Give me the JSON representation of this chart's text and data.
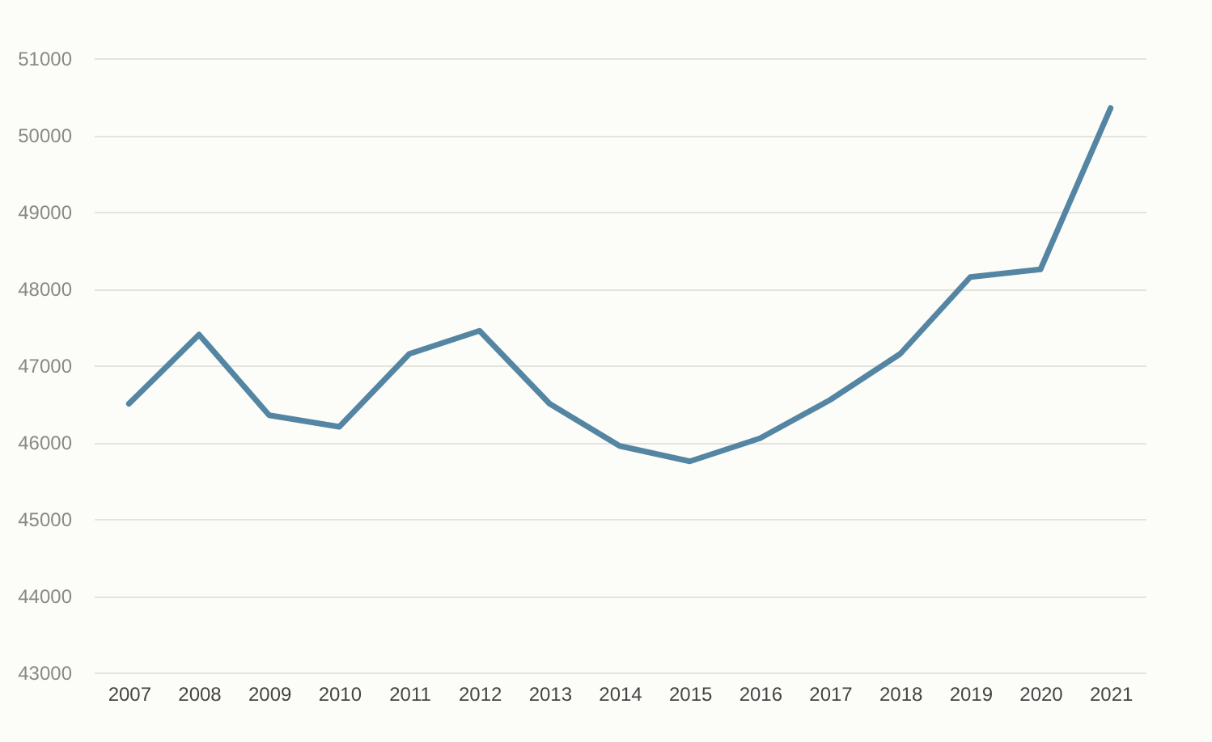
{
  "chart_data": {
    "type": "line",
    "categories": [
      "2007",
      "2008",
      "2009",
      "2010",
      "2011",
      "2012",
      "2013",
      "2014",
      "2015",
      "2016",
      "2017",
      "2018",
      "2019",
      "2020",
      "2021"
    ],
    "series": [
      {
        "color": "#5485a3",
        "values": [
          46500,
          47400,
          46350,
          46200,
          47150,
          47450,
          46500,
          45950,
          45750,
          46050,
          46550,
          47150,
          48150,
          48250,
          50350
        ]
      }
    ],
    "ylim": [
      43000,
      51000
    ],
    "yticks": [
      43000,
      44000,
      45000,
      46000,
      47000,
      48000,
      49000,
      50000,
      51000
    ],
    "grid": "y",
    "marker": "none",
    "line_style": "solid"
  }
}
